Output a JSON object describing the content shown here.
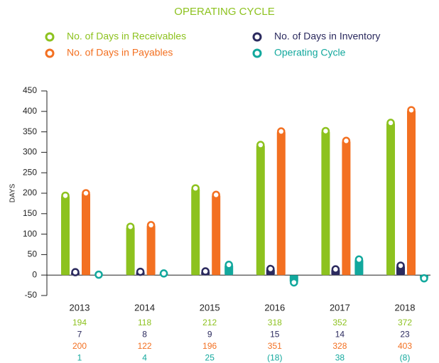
{
  "chart_data": {
    "type": "bar",
    "title": "OPERATING CYCLE",
    "y_label": "DAYS",
    "categories": [
      "2013",
      "2014",
      "2015",
      "2016",
      "2017",
      "2018"
    ],
    "series": [
      {
        "name": "No. of Days in Receivables",
        "color": "#8dc21f",
        "values": [
          194,
          118,
          212,
          318,
          352,
          372
        ]
      },
      {
        "name": "No. of Days in Inventory",
        "color": "#2b2a5e",
        "values": [
          7,
          8,
          9,
          15,
          14,
          23
        ]
      },
      {
        "name": "No. of Days in Payables",
        "color": "#f37021",
        "values": [
          200,
          122,
          196,
          351,
          328,
          403
        ]
      },
      {
        "name": "Operating Cycle",
        "color": "#12a89d",
        "values": [
          1,
          4,
          25,
          -18,
          38,
          -8
        ],
        "value_labels": [
          "1",
          "4",
          "25",
          "(18)",
          "38",
          "(8)"
        ]
      }
    ],
    "ylim": [
      -50,
      450
    ],
    "yticks": [
      -50,
      0,
      50,
      100,
      150,
      200,
      250,
      300,
      350,
      400,
      450
    ],
    "grid": false
  }
}
